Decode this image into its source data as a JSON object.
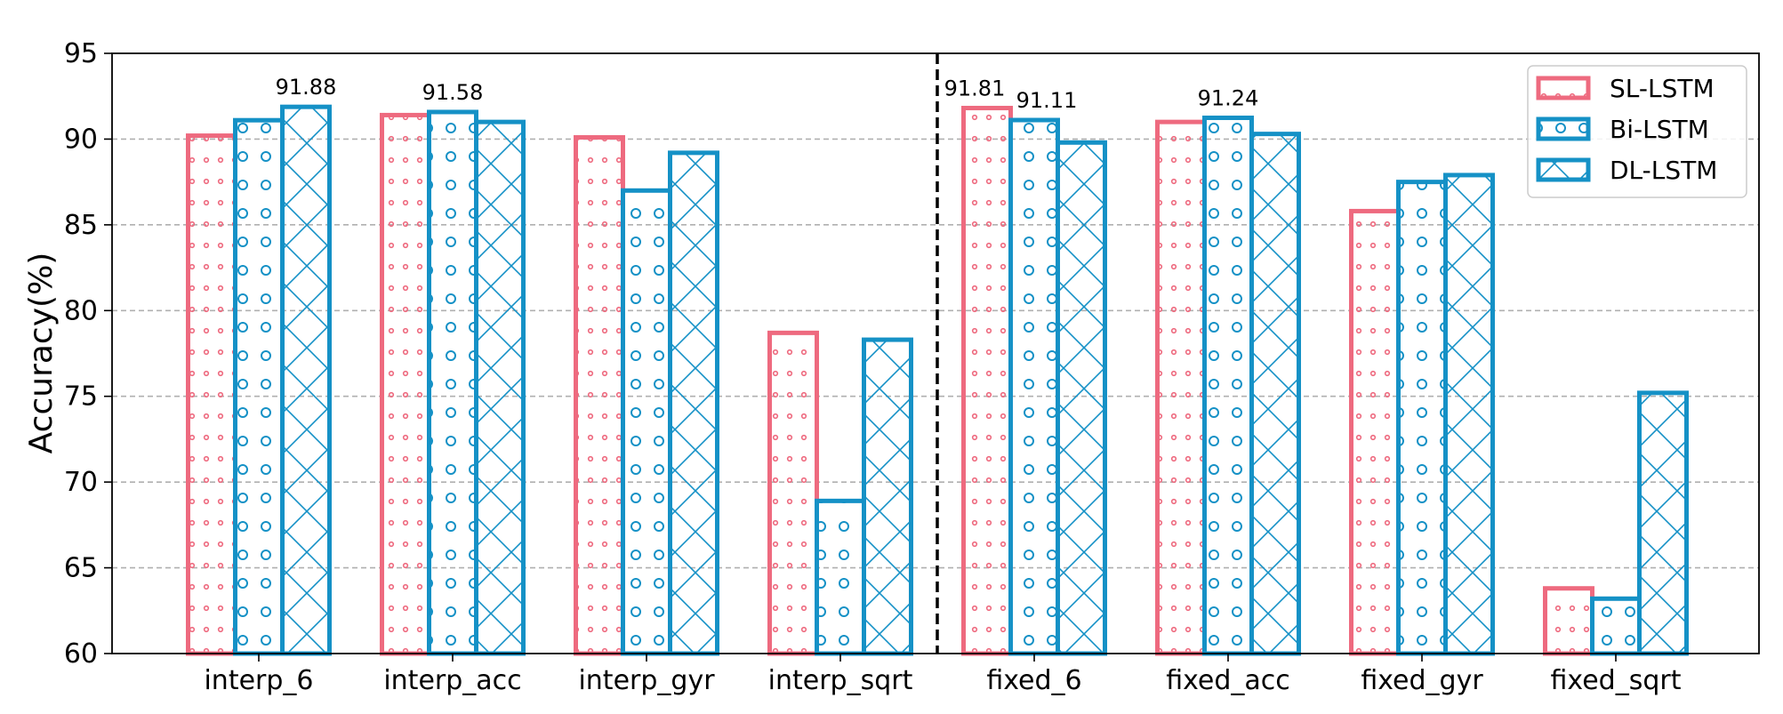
{
  "chart_data": {
    "type": "bar",
    "title": "",
    "xlabel": "",
    "ylabel": "Accuracy(%)",
    "ylim": [
      60,
      95
    ],
    "yticks": [
      60,
      65,
      70,
      75,
      80,
      85,
      90,
      95
    ],
    "categories": [
      "interp_6",
      "interp_acc",
      "interp_gyr",
      "interp_sqrt",
      "fixed_6",
      "fixed_acc",
      "fixed_gyr",
      "fixed_sqrt"
    ],
    "series": [
      {
        "name": "SL-LSTM",
        "color": "#EE6A7F",
        "pattern": "small-dots",
        "values": [
          90.2,
          91.4,
          90.1,
          78.7,
          91.81,
          91.0,
          85.8,
          63.8
        ]
      },
      {
        "name": "Bi-LSTM",
        "color": "#1591C6",
        "pattern": "circles",
        "values": [
          91.1,
          91.58,
          87.0,
          68.9,
          91.11,
          91.24,
          87.5,
          63.2
        ]
      },
      {
        "name": "DL-LSTM",
        "color": "#1591C6",
        "pattern": "crosshatch",
        "values": [
          91.88,
          91.0,
          89.2,
          78.3,
          89.8,
          90.3,
          87.9,
          75.2
        ]
      }
    ],
    "annotations": [
      {
        "category": "interp_6",
        "series": "DL-LSTM",
        "text": "91.88"
      },
      {
        "category": "interp_acc",
        "series": "Bi-LSTM",
        "text": "91.58"
      },
      {
        "category": "fixed_6",
        "series": "SL-LSTM",
        "text": "91.81"
      },
      {
        "category": "fixed_6",
        "series": "Bi-LSTM",
        "text": "91.11"
      },
      {
        "category": "fixed_acc",
        "series": "Bi-LSTM",
        "text": "91.24"
      }
    ],
    "separator_after_category": "interp_sqrt",
    "grid": "horizontal dashed",
    "legend_position": "top-right"
  }
}
